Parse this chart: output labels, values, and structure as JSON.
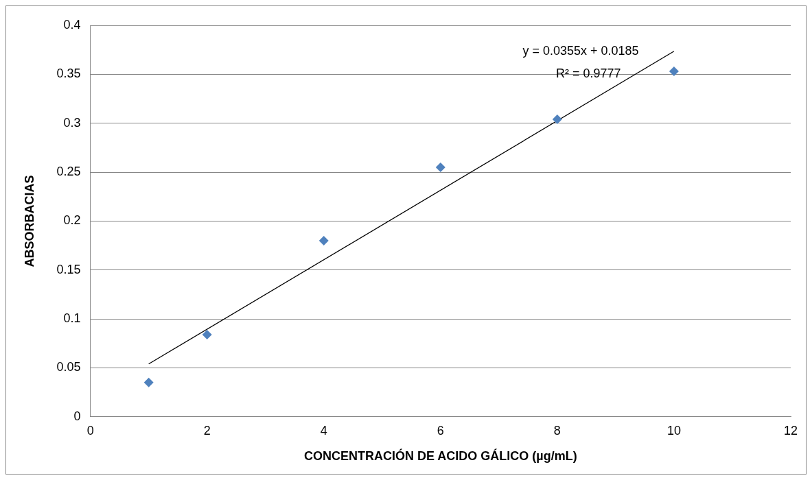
{
  "chart_data": {
    "type": "scatter",
    "xlabel": "CONCENTRACIÓN DE ACIDO GÁLICO (µg/mL)",
    "ylabel": "ABSORBACIAS",
    "annotations": [
      "y = 0.0355x + 0.0185",
      "R² = 0.9777"
    ],
    "xlim": [
      0,
      12
    ],
    "xticks": [
      0,
      2,
      4,
      6,
      8,
      10,
      12
    ],
    "ylim": [
      0,
      0.4
    ],
    "yticks": [
      0,
      0.05,
      0.1,
      0.15,
      0.2,
      0.25,
      0.3,
      0.35,
      0.4
    ],
    "grid": "y",
    "legend": false,
    "series": [
      {
        "type": "scatter",
        "color": "#4f81bd",
        "marker": "diamond",
        "x": [
          1,
          2,
          4,
          6,
          8,
          10
        ],
        "values": [
          0.035,
          0.084,
          0.18,
          0.255,
          0.304,
          0.353
        ]
      },
      {
        "type": "line",
        "color": "#000000",
        "marker": "none",
        "line_style": "solid",
        "x": [
          1,
          10
        ],
        "values": [
          0.054,
          0.3735
        ]
      }
    ]
  }
}
